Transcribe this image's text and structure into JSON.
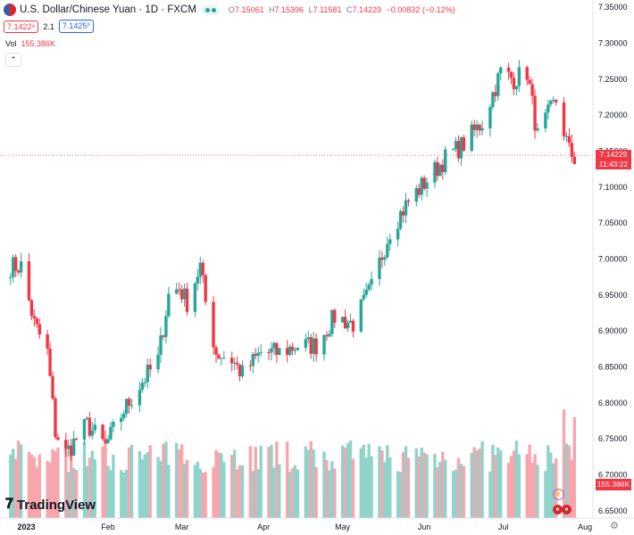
{
  "header": {
    "symbol_title": "U.S. Dollar/Chinese Yuan · 1D · FXCM",
    "open_label": "O",
    "open": "7.15061",
    "high_label": "H",
    "high": "7.15396",
    "low_label": "L",
    "low": "7.11581",
    "close_label": "C",
    "close": "7.14229",
    "change": "−0.00832 (−0.12%)",
    "sell_price": "7.1422⁹",
    "spread": "2.1",
    "buy_price": "7.1425⁰",
    "volume_label": "Vol",
    "volume_value": "155.386K"
  },
  "price_scale": {
    "ticks": [
      "7.35000",
      "7.30000",
      "7.25000",
      "7.20000",
      "7.15000",
      "7.10000",
      "7.05000",
      "7.00000",
      "6.95000",
      "6.90000",
      "6.85000",
      "6.80000",
      "6.75000",
      "6.70000",
      "6.65000"
    ],
    "current_price": "7.14229",
    "countdown": "11:43:22",
    "current_volume": "155.386K"
  },
  "time_axis": [
    "2023",
    "Feb",
    "Mar",
    "Apr",
    "May",
    "Jun",
    "Jul",
    "Aug"
  ],
  "logo_text": "TradingView",
  "icons": [
    "flag-icon",
    "status-icon",
    "collapse-chevron-icon",
    "tradingview-logo-icon",
    "lightning-icon",
    "flag-event-icon",
    "settings-gear-icon"
  ],
  "colors": {
    "up": "#26a69a",
    "down": "#f23645",
    "up_volume": "#8fd3cb",
    "down_volume": "#f7a6ad",
    "buy": "#2962ff"
  },
  "chart_data": {
    "type": "candlestick",
    "title": "U.S. Dollar/Chinese Yuan · 1D · FXCM",
    "ylim": [
      6.64,
      7.36
    ],
    "x_start": "2022-12-22",
    "x_end": "2023-08-04",
    "anchors": [
      [
        "2022-12-26",
        6.99
      ],
      [
        "2022-12-30",
        6.99
      ],
      [
        "2023-01-04",
        6.91
      ],
      [
        "2023-01-09",
        6.87
      ],
      [
        "2023-01-12",
        6.76
      ],
      [
        "2023-01-16",
        6.73
      ],
      [
        "2023-01-24",
        6.77
      ],
      [
        "2023-01-31",
        6.74
      ],
      [
        "2023-02-07",
        6.79
      ],
      [
        "2023-02-14",
        6.83
      ],
      [
        "2023-02-20",
        6.86
      ],
      [
        "2023-02-24",
        6.95
      ],
      [
        "2023-02-28",
        6.96
      ],
      [
        "2023-03-03",
        6.94
      ],
      [
        "2023-03-08",
        6.99
      ],
      [
        "2023-03-10",
        6.94
      ],
      [
        "2023-03-14",
        6.87
      ],
      [
        "2023-03-20",
        6.86
      ],
      [
        "2023-03-24",
        6.84
      ],
      [
        "2023-03-31",
        6.87
      ],
      [
        "2023-04-07",
        6.87
      ],
      [
        "2023-04-14",
        6.88
      ],
      [
        "2023-04-21",
        6.88
      ],
      [
        "2023-04-28",
        6.92
      ],
      [
        "2023-05-05",
        6.91
      ],
      [
        "2023-05-12",
        6.96
      ],
      [
        "2023-05-19",
        7.04
      ],
      [
        "2023-05-26",
        7.08
      ],
      [
        "2023-06-02",
        7.11
      ],
      [
        "2023-06-09",
        7.14
      ],
      [
        "2023-06-16",
        7.16
      ],
      [
        "2023-06-23",
        7.19
      ],
      [
        "2023-06-30",
        7.26
      ],
      [
        "2023-07-05",
        7.25
      ],
      [
        "2023-07-10",
        7.26
      ],
      [
        "2023-07-14",
        7.17
      ],
      [
        "2023-07-18",
        7.2
      ],
      [
        "2023-07-21",
        7.22
      ],
      [
        "2023-07-26",
        7.15
      ],
      [
        "2023-07-28",
        7.14
      ]
    ],
    "volume_ylim": [
      0,
      200000
    ],
    "last_volume": 155386
  }
}
